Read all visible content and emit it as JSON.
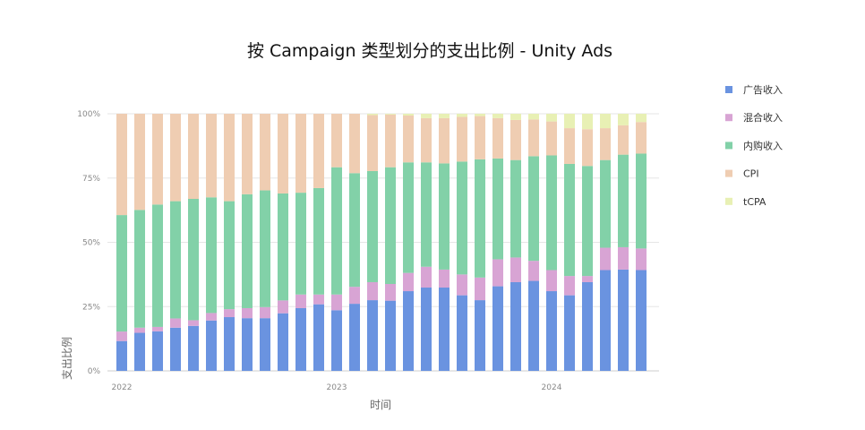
{
  "chart_data": {
    "type": "bar",
    "stacked": true,
    "normalized": true,
    "title": "按 Campaign 类型划分的支出比例 - Unity Ads",
    "xlabel": "时间",
    "ylabel": "支出比例",
    "ylim": [
      0,
      100
    ],
    "yticks": [
      "0%",
      "25%",
      "50%",
      "75%",
      "100%"
    ],
    "xticks": [
      {
        "label": "2022",
        "index": 0
      },
      {
        "label": "2023",
        "index": 12
      },
      {
        "label": "2024",
        "index": 24
      }
    ],
    "categories": [
      "2022-01",
      "2022-02",
      "2022-03",
      "2022-04",
      "2022-05",
      "2022-06",
      "2022-07",
      "2022-08",
      "2022-09",
      "2022-10",
      "2022-11",
      "2022-12",
      "2023-01",
      "2023-02",
      "2023-03",
      "2023-04",
      "2023-05",
      "2023-06",
      "2023-07",
      "2023-08",
      "2023-09",
      "2023-10",
      "2023-11",
      "2023-12",
      "2024-01",
      "2024-02",
      "2024-03",
      "2024-04",
      "2024-05",
      "2024-06"
    ],
    "grid": true,
    "legend_position": "right",
    "series": [
      {
        "name": "广告收入",
        "color": "#6a93e0",
        "values": [
          11.6,
          14.8,
          15.4,
          16.8,
          17.5,
          19.6,
          20.9,
          20.5,
          20.5,
          22.4,
          24.4,
          25.9,
          23.6,
          26.1,
          27.5,
          27.3,
          31.0,
          32.4,
          32.4,
          29.4,
          27.5,
          32.9,
          34.5,
          35.0,
          31.0,
          29.4,
          34.5,
          39.2,
          39.4,
          39.2
        ]
      },
      {
        "name": "混合收入",
        "color": "#d8a4d4",
        "values": [
          3.7,
          2.0,
          1.7,
          3.6,
          2.2,
          2.9,
          3.1,
          3.9,
          4.3,
          5.0,
          5.3,
          3.8,
          6.1,
          6.6,
          7.0,
          6.5,
          7.1,
          8.1,
          7.0,
          8.1,
          8.8,
          10.5,
          9.6,
          7.8,
          8.2,
          7.5,
          2.4,
          8.7,
          8.7,
          8.4
        ]
      },
      {
        "name": "内购收入",
        "color": "#82d1a8",
        "values": [
          45.3,
          45.8,
          47.6,
          45.6,
          47.2,
          45.0,
          42.0,
          44.3,
          45.4,
          41.6,
          39.6,
          41.4,
          49.5,
          44.2,
          43.2,
          45.4,
          43.0,
          40.6,
          41.3,
          43.9,
          46.0,
          39.2,
          37.9,
          40.7,
          44.6,
          43.6,
          42.8,
          34.1,
          36.0,
          36.9
        ]
      },
      {
        "name": "CPI",
        "color": "#efcdb2",
        "values": [
          39.4,
          37.4,
          35.3,
          34.0,
          33.1,
          32.5,
          34.0,
          31.3,
          29.8,
          31.0,
          30.7,
          28.9,
          20.8,
          23.1,
          21.8,
          20.5,
          18.2,
          17.2,
          17.6,
          17.4,
          16.8,
          15.7,
          15.6,
          14.3,
          13.2,
          13.9,
          14.3,
          12.4,
          11.4,
          12.3
        ]
      },
      {
        "name": "tCPA",
        "color": "#e8f0b4",
        "values": [
          0,
          0,
          0,
          0,
          0,
          0,
          0,
          0,
          0,
          0,
          0,
          0,
          0,
          0,
          0.5,
          0.3,
          0.7,
          1.7,
          1.7,
          1.2,
          0.9,
          1.7,
          2.4,
          2.2,
          3.0,
          5.6,
          6.0,
          5.6,
          4.5,
          3.2
        ]
      }
    ]
  }
}
